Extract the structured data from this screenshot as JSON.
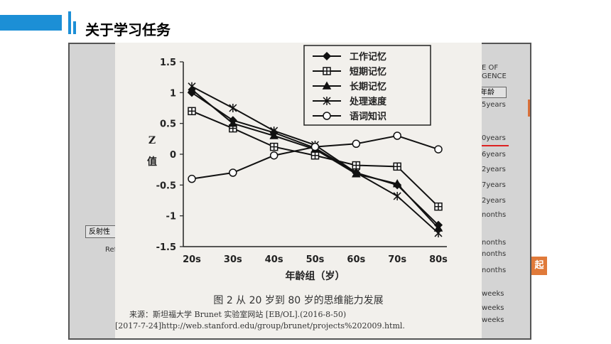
{
  "header": {
    "title": "关于学习任务"
  },
  "background_slide": {
    "texts": {
      "e_of": "E OF",
      "gence": "GENCE",
      "age_box": "年龄",
      "left_box": "反射性",
      "ref": "Ref",
      "badge": "起"
    },
    "right_labels": [
      "5years",
      "0years",
      "6years",
      "2years",
      "7years",
      "2years",
      "nonths",
      "nonths",
      "nonths",
      "nonths",
      "weeks",
      "weeks",
      "weeks"
    ]
  },
  "figure": {
    "caption": "图 2 从 20 岁到 80 岁的思维能力发展",
    "source_line1": "来源：斯坦福大学 Brunet 实验室网站 [EB/OL].(2016-8-50)",
    "source_line2": "[2017-7-24]http://web.stanford.edu/group/brunet/projects%202009.html."
  },
  "chart_data": {
    "type": "line",
    "categories": [
      "20s",
      "30s",
      "40s",
      "50s",
      "60s",
      "70s",
      "80s"
    ],
    "xlabel": "年龄组（岁）",
    "ylabel": "Z值",
    "ylim": [
      -1.5,
      1.5
    ],
    "yticks": [
      "1.5",
      "1",
      "0.5",
      "0",
      "-0.5",
      "-1",
      "-1.5"
    ],
    "legend_position": "top-right",
    "series": [
      {
        "name": "工作记忆",
        "marker": "diamond",
        "values": [
          1.0,
          0.55,
          0.35,
          0.1,
          -0.3,
          -0.5,
          -1.15
        ]
      },
      {
        "name": "短期记忆",
        "marker": "plus-square",
        "values": [
          0.7,
          0.42,
          0.12,
          -0.02,
          -0.18,
          -0.2,
          -0.85
        ]
      },
      {
        "name": "长期记忆",
        "marker": "triangle",
        "values": [
          1.05,
          0.5,
          0.3,
          0.08,
          -0.32,
          -0.48,
          -1.2
        ]
      },
      {
        "name": "处理速度",
        "marker": "asterisk",
        "values": [
          1.1,
          0.75,
          0.38,
          0.15,
          -0.3,
          -0.68,
          -1.28
        ]
      },
      {
        "name": "语词知识",
        "marker": "circle",
        "values": [
          -0.4,
          -0.3,
          -0.02,
          0.12,
          0.17,
          0.3,
          0.08
        ]
      }
    ]
  }
}
